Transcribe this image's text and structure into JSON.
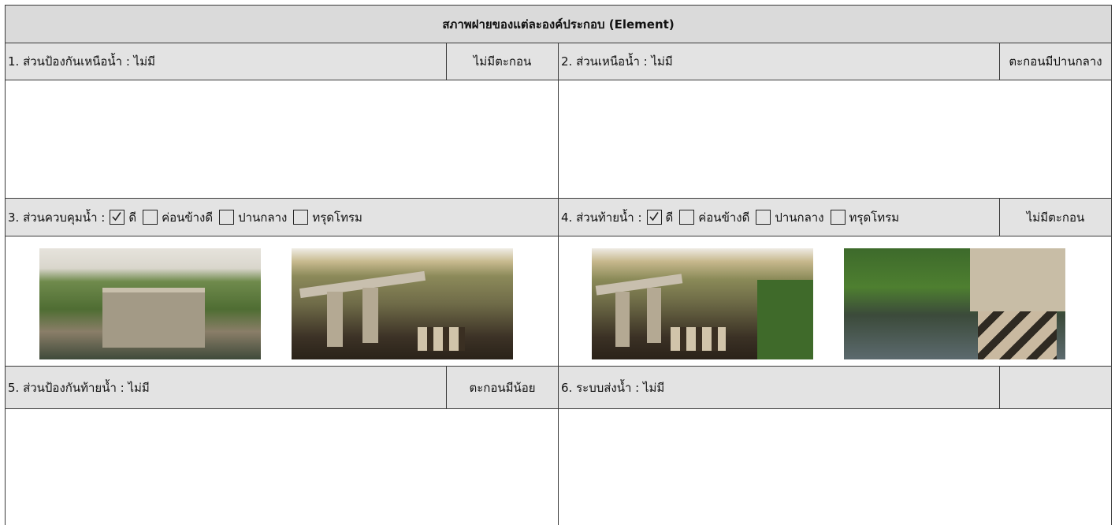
{
  "title": "สภาพฝายของแต่ละองค์ประกอบ (Element)",
  "sections": [
    {
      "label": "1. ส่วนป้องกันเหนือน้ำ : ไม่มี",
      "status": "ไม่มีตะกอน"
    },
    {
      "label": "2. ส่วนเหนือน้ำ : ไม่มี",
      "status": "ตะกอนมีปานกลาง"
    },
    {
      "label": "3. ส่วนควบคุมน้ำ :",
      "options": [
        {
          "text": "ดี",
          "checked": true
        },
        {
          "text": "ค่อนข้างดี",
          "checked": false
        },
        {
          "text": "ปานกลาง",
          "checked": false
        },
        {
          "text": "ทรุดโทรม",
          "checked": false
        }
      ]
    },
    {
      "label": "4. ส่วนท้ายน้ำ :",
      "options": [
        {
          "text": "ดี",
          "checked": true
        },
        {
          "text": "ค่อนข้างดี",
          "checked": false
        },
        {
          "text": "ปานกลาง",
          "checked": false
        },
        {
          "text": "ทรุดโทรม",
          "checked": false
        }
      ],
      "status": "ไม่มีตะกอน"
    },
    {
      "label": "5. ส่วนป้องกันท้ายน้ำ : ไม่มี",
      "status": "ตะกอนมีน้อย"
    },
    {
      "label": "6. ระบบส่งน้ำ : ไม่มี"
    }
  ]
}
